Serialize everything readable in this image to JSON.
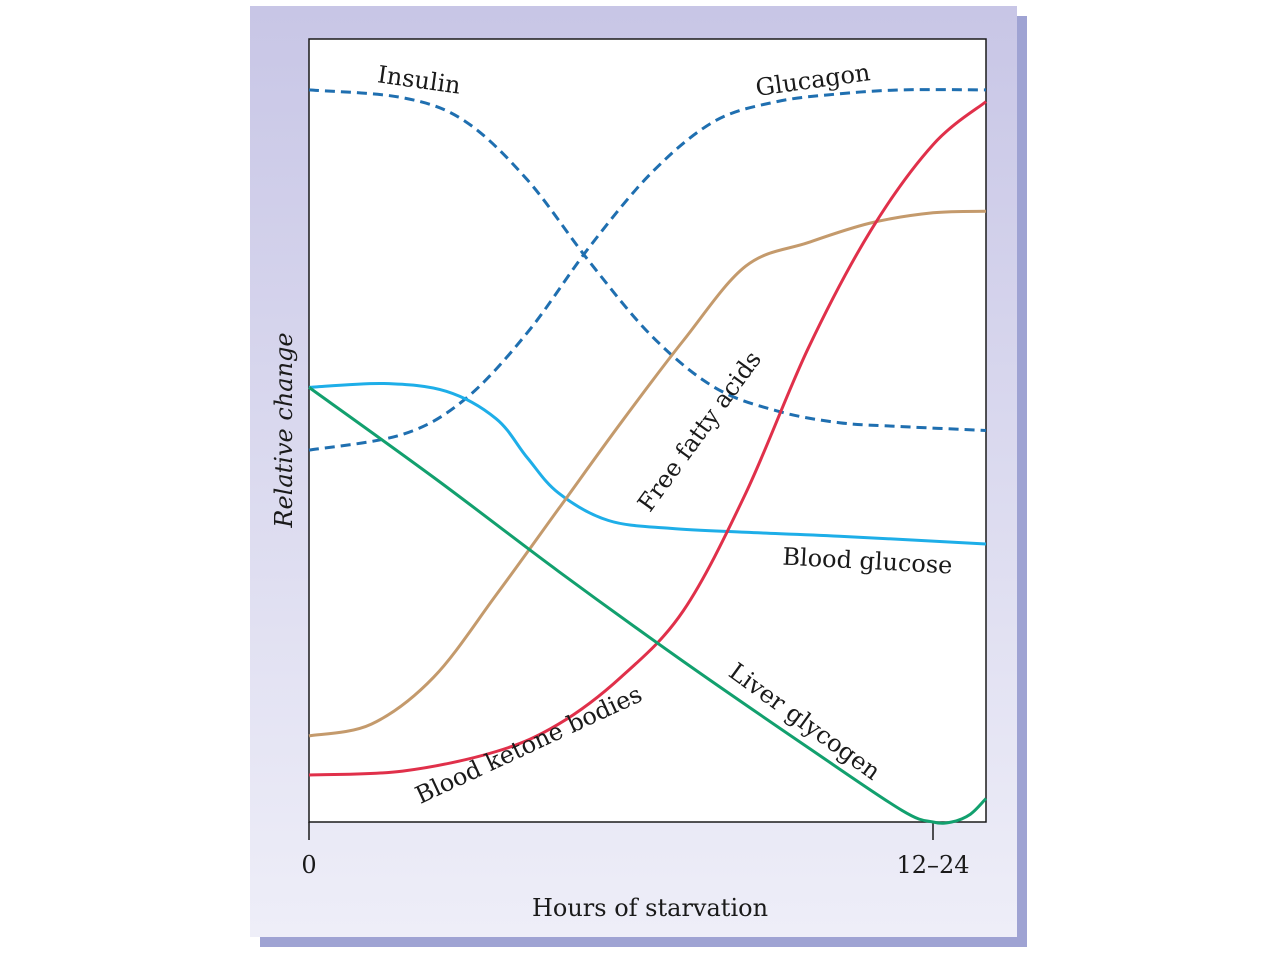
{
  "chart_data": {
    "type": "line",
    "title": "",
    "xlabel": "Hours of starvation",
    "ylabel": "Relative change",
    "x_ticks": [
      "0",
      "12–24"
    ],
    "xlim": [
      0,
      1.085
    ],
    "ylim": [
      0,
      1
    ],
    "grid": false,
    "legend": "none (series labeled inline)",
    "series": [
      {
        "name": "Insulin",
        "style": "dashed",
        "color": "#1f6fb0",
        "x": [
          0,
          0.15,
          0.25,
          0.35,
          0.45,
          0.55,
          0.65,
          0.75,
          0.85,
          0.95,
          1.085
        ],
        "y": [
          0.935,
          0.925,
          0.895,
          0.82,
          0.715,
          0.62,
          0.555,
          0.525,
          0.51,
          0.505,
          0.5
        ]
      },
      {
        "name": "Glucagon",
        "style": "dashed",
        "color": "#1f6fb0",
        "x": [
          0,
          0.15,
          0.25,
          0.35,
          0.45,
          0.55,
          0.65,
          0.75,
          0.85,
          0.95,
          1.085
        ],
        "y": [
          0.475,
          0.495,
          0.54,
          0.625,
          0.735,
          0.83,
          0.895,
          0.92,
          0.93,
          0.935,
          0.935
        ]
      },
      {
        "name": "Blood glucose",
        "style": "solid",
        "color": "#1eaee8",
        "x": [
          0,
          0.12,
          0.22,
          0.3,
          0.35,
          0.4,
          0.48,
          0.58,
          0.7,
          0.85,
          1.085
        ],
        "y": [
          0.555,
          0.56,
          0.55,
          0.515,
          0.465,
          0.42,
          0.385,
          0.375,
          0.37,
          0.365,
          0.355
        ]
      },
      {
        "name": "Free fatty acids",
        "style": "solid",
        "color": "#c49a6c",
        "x": [
          0,
          0.1,
          0.2,
          0.3,
          0.4,
          0.5,
          0.6,
          0.7,
          0.8,
          0.9,
          1.0,
          1.085
        ],
        "y": [
          0.11,
          0.125,
          0.185,
          0.29,
          0.4,
          0.51,
          0.615,
          0.71,
          0.74,
          0.765,
          0.778,
          0.78
        ]
      },
      {
        "name": "Blood ketone bodies",
        "style": "solid",
        "color": "#e0304a",
        "x": [
          0,
          0.15,
          0.3,
          0.4,
          0.5,
          0.6,
          0.7,
          0.8,
          0.9,
          1.0,
          1.085
        ],
        "y": [
          0.06,
          0.065,
          0.09,
          0.125,
          0.185,
          0.27,
          0.42,
          0.605,
          0.755,
          0.865,
          0.92
        ]
      },
      {
        "name": "Liver glycogen",
        "style": "solid",
        "color": "#12a06e",
        "x": [
          0,
          0.2,
          0.4,
          0.6,
          0.8,
          0.95,
          1.0,
          1.03,
          1.06,
          1.085
        ],
        "y": [
          0.555,
          0.44,
          0.32,
          0.205,
          0.095,
          0.015,
          0.0,
          0.0,
          0.01,
          0.03
        ]
      }
    ]
  }
}
